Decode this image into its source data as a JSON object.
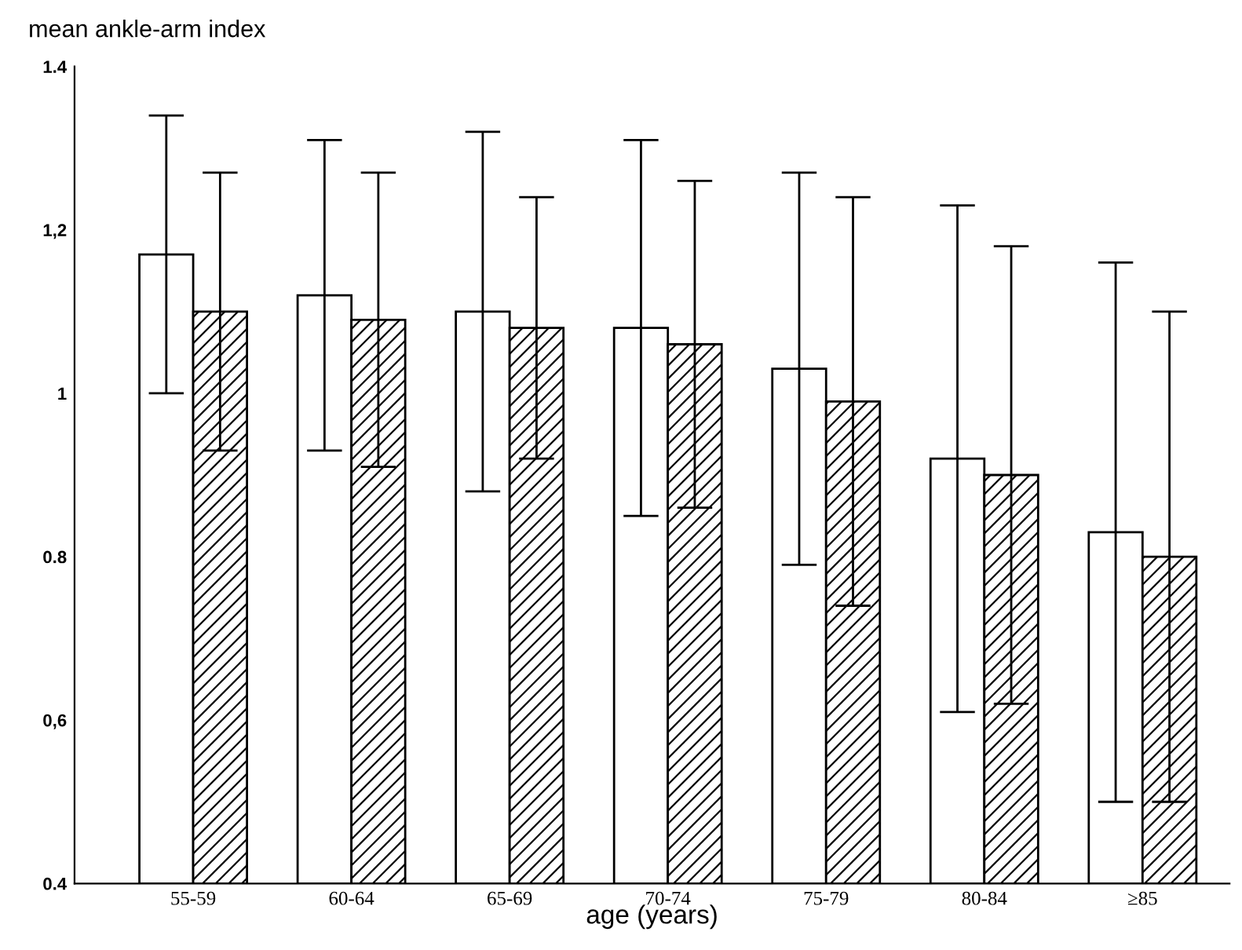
{
  "chart_data": {
    "type": "bar",
    "ylabel": "mean ankle-arm index",
    "xlabel": "age (years)",
    "categories": [
      "55-59",
      "60-64",
      "65-69",
      "70-74",
      "75-79",
      "80-84",
      "≥85"
    ],
    "series": [
      {
        "color": "#ffffff",
        "values": [
          1.17,
          1.12,
          1.1,
          1.08,
          1.03,
          0.92,
          0.83
        ],
        "errors": [
          [
            1.0,
            1.34
          ],
          [
            0.93,
            1.31
          ],
          [
            0.88,
            1.32
          ],
          [
            0.85,
            1.31
          ],
          [
            0.79,
            1.27
          ],
          [
            0.61,
            1.23
          ],
          [
            0.5,
            1.16
          ]
        ]
      },
      {
        "color": "#000000",
        "values": [
          1.1,
          1.09,
          1.08,
          1.06,
          0.99,
          0.9,
          0.8
        ],
        "errors": [
          [
            0.93,
            1.27
          ],
          [
            0.91,
            1.27
          ],
          [
            0.92,
            1.24
          ],
          [
            0.86,
            1.26
          ],
          [
            0.74,
            1.24
          ],
          [
            0.62,
            1.18
          ],
          [
            0.5,
            1.1
          ]
        ]
      }
    ],
    "ylim": [
      0.4,
      1.4
    ],
    "yticks": [
      {
        "value": 0.4,
        "label": "0.4"
      },
      {
        "value": 0.6,
        "label": "0,6"
      },
      {
        "value": 0.8,
        "label": "0.8"
      },
      {
        "value": 1,
        "label": "1"
      },
      {
        "value": 1.2,
        "label": "1,2"
      },
      {
        "value": 1.4,
        "label": "1.4"
      }
    ],
    "grid": false,
    "legend": false
  }
}
